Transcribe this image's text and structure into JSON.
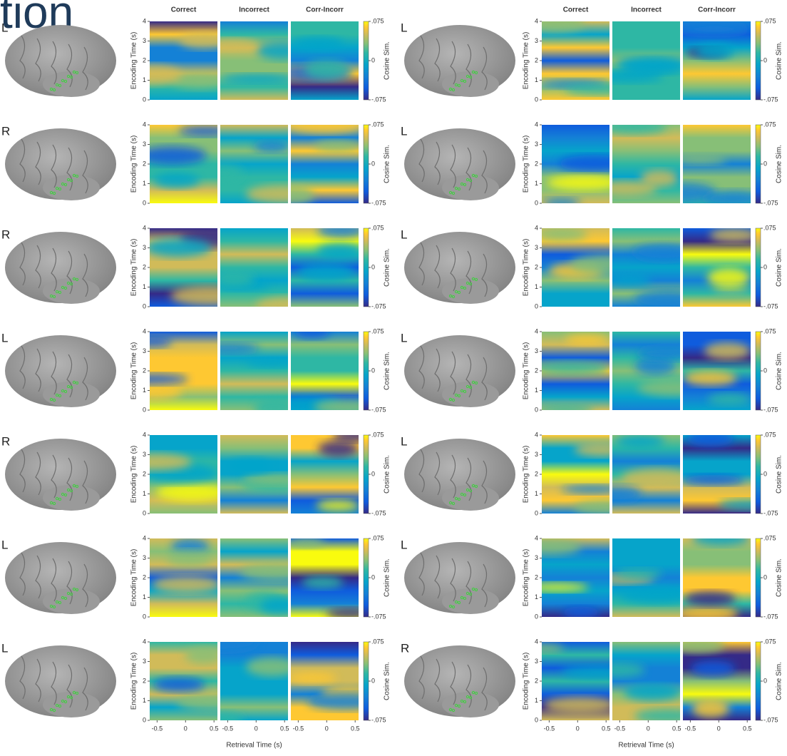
{
  "figure": {
    "title_fragment": "tion",
    "columns": [
      "Correct",
      "Incorrect",
      "Corr-Incorr"
    ],
    "y_label": "Encoding Time (s)",
    "x_label": "Retrieval Time (s)",
    "colorbar_label": "Cosine Sim.",
    "ylim": [
      0,
      4
    ],
    "yticks": [
      0,
      1,
      2,
      3,
      4
    ],
    "xlim": [
      -0.63,
      0.56
    ],
    "xticks": [
      -0.5,
      0,
      0.5
    ],
    "clim": [
      -0.075,
      0.075
    ],
    "colorbar_ticks": [
      {
        "value": 0.075,
        "label": ".075"
      },
      {
        "value": 0,
        "label": "0"
      },
      {
        "value": -0.075,
        "label": "-.075"
      }
    ],
    "panels": [
      [
        {
          "hemisphere": "L"
        },
        {
          "hemisphere": "R"
        },
        {
          "hemisphere": "R"
        },
        {
          "hemisphere": "L"
        },
        {
          "hemisphere": "R"
        },
        {
          "hemisphere": "L"
        },
        {
          "hemisphere": "L"
        }
      ],
      [
        {
          "hemisphere": "L"
        },
        {
          "hemisphere": "L"
        },
        {
          "hemisphere": "L"
        },
        {
          "hemisphere": "L"
        },
        {
          "hemisphere": "L"
        },
        {
          "hemisphere": "L"
        },
        {
          "hemisphere": "R"
        }
      ]
    ]
  }
}
